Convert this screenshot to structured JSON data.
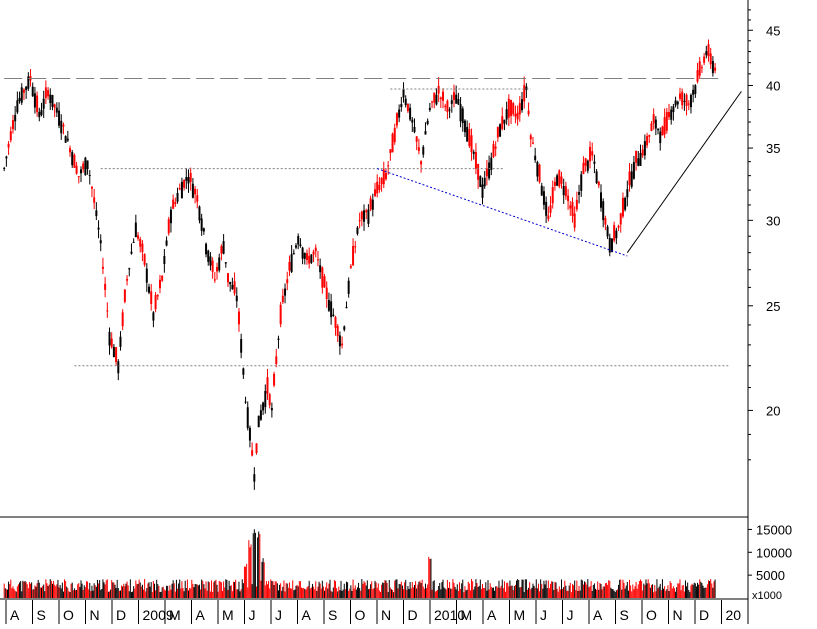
{
  "chart_data": [
    {
      "type": "candlestick",
      "title": "",
      "xlabel": "",
      "ylabel": "",
      "y_scale": "log",
      "ylim": [
        16,
        48
      ],
      "y_ticks": [
        45,
        40,
        35,
        30,
        25,
        20
      ],
      "x_labels": [
        "A",
        "S",
        "O",
        "N",
        "D",
        "2009",
        "M",
        "A",
        "M",
        "J",
        "J",
        "A",
        "S",
        "O",
        "N",
        "D",
        "2010",
        "M",
        "A",
        "M",
        "J",
        "J",
        "A",
        "S",
        "O",
        "N",
        "D",
        "20"
      ],
      "colors": {
        "up": "#000000",
        "down": "#ff0000",
        "grid": "#808080",
        "trend_blue": "#0000cc",
        "trend_black": "#000000"
      },
      "price_path": [
        {
          "t": 0,
          "p": 33.5
        },
        {
          "t": 3,
          "p": 38.5
        },
        {
          "t": 6,
          "p": 40.6
        },
        {
          "t": 8,
          "p": 37.5
        },
        {
          "t": 10,
          "p": 39.5
        },
        {
          "t": 13,
          "p": 37.0
        },
        {
          "t": 15,
          "p": 35.0
        },
        {
          "t": 17,
          "p": 33.0
        },
        {
          "t": 19,
          "p": 34.0
        },
        {
          "t": 22,
          "p": 28.5
        },
        {
          "t": 24,
          "p": 23.5
        },
        {
          "t": 26,
          "p": 22.0
        },
        {
          "t": 28,
          "p": 26.5
        },
        {
          "t": 30,
          "p": 29.5
        },
        {
          "t": 32,
          "p": 27.5
        },
        {
          "t": 34,
          "p": 24.5
        },
        {
          "t": 36,
          "p": 26.5
        },
        {
          "t": 38,
          "p": 30.5
        },
        {
          "t": 40,
          "p": 32.0
        },
        {
          "t": 42,
          "p": 33.0
        },
        {
          "t": 44,
          "p": 31.5
        },
        {
          "t": 46,
          "p": 28.5
        },
        {
          "t": 48,
          "p": 26.5
        },
        {
          "t": 50,
          "p": 28.5
        },
        {
          "t": 51,
          "p": 26.5
        },
        {
          "t": 53,
          "p": 25.5
        },
        {
          "t": 55,
          "p": 20.5
        },
        {
          "t": 57,
          "p": 17.5
        },
        {
          "t": 58,
          "p": 19.5
        },
        {
          "t": 60,
          "p": 21.0
        },
        {
          "t": 61,
          "p": 20.0
        },
        {
          "t": 63,
          "p": 24.5
        },
        {
          "t": 65,
          "p": 27.0
        },
        {
          "t": 67,
          "p": 29.0
        },
        {
          "t": 69,
          "p": 27.5
        },
        {
          "t": 71,
          "p": 28.0
        },
        {
          "t": 73,
          "p": 26.0
        },
        {
          "t": 75,
          "p": 24.5
        },
        {
          "t": 77,
          "p": 23.0
        },
        {
          "t": 79,
          "p": 27.0
        },
        {
          "t": 81,
          "p": 30.0
        },
        {
          "t": 83,
          "p": 30.5
        },
        {
          "t": 85,
          "p": 32.0
        },
        {
          "t": 87,
          "p": 33.0
        },
        {
          "t": 89,
          "p": 36.0
        },
        {
          "t": 91,
          "p": 39.5
        },
        {
          "t": 93,
          "p": 37.0
        },
        {
          "t": 95,
          "p": 34.0
        },
        {
          "t": 97,
          "p": 38.0
        },
        {
          "t": 99,
          "p": 39.5
        },
        {
          "t": 101,
          "p": 38.0
        },
        {
          "t": 103,
          "p": 39.0
        },
        {
          "t": 105,
          "p": 37.0
        },
        {
          "t": 107,
          "p": 34.5
        },
        {
          "t": 109,
          "p": 32.0
        },
        {
          "t": 111,
          "p": 34.0
        },
        {
          "t": 113,
          "p": 36.5
        },
        {
          "t": 115,
          "p": 38.0
        },
        {
          "t": 117,
          "p": 37.5
        },
        {
          "t": 119,
          "p": 39.8
        },
        {
          "t": 120,
          "p": 36.0
        },
        {
          "t": 122,
          "p": 33.0
        },
        {
          "t": 124,
          "p": 30.0
        },
        {
          "t": 126,
          "p": 33.0
        },
        {
          "t": 128,
          "p": 32.0
        },
        {
          "t": 130,
          "p": 30.0
        },
        {
          "t": 132,
          "p": 33.5
        },
        {
          "t": 134,
          "p": 34.5
        },
        {
          "t": 136,
          "p": 31.5
        },
        {
          "t": 138,
          "p": 28.5
        },
        {
          "t": 140,
          "p": 29.5
        },
        {
          "t": 142,
          "p": 32.0
        },
        {
          "t": 144,
          "p": 34.0
        },
        {
          "t": 146,
          "p": 35.0
        },
        {
          "t": 148,
          "p": 37.0
        },
        {
          "t": 150,
          "p": 36.0
        },
        {
          "t": 152,
          "p": 38.0
        },
        {
          "t": 154,
          "p": 39.0
        },
        {
          "t": 156,
          "p": 38.5
        },
        {
          "t": 158,
          "p": 40.5
        },
        {
          "t": 160,
          "p": 43.0
        },
        {
          "t": 162,
          "p": 41.5
        }
      ],
      "volume_profile": {
        "base": 3200,
        "spikes": [
          {
            "t": 57,
            "v": 16500
          },
          {
            "t": 58,
            "v": 15000
          },
          {
            "t": 56,
            "v": 13000
          },
          {
            "t": 59,
            "v": 9000
          },
          {
            "t": 97,
            "v": 10000
          },
          {
            "t": 55,
            "v": 7500
          }
        ]
      },
      "volume_ticks": [
        15000,
        10000,
        5000
      ],
      "volume_unit_label": "x1000",
      "reference_lines": [
        {
          "style": "dashed",
          "y": 40.6,
          "from_t": 0,
          "to_t": 164
        },
        {
          "style": "dotted",
          "y": 39.7,
          "from_t": 88,
          "to_t": 120
        },
        {
          "style": "dotted",
          "y": 33.5,
          "from_t": 22,
          "to_t": 114
        },
        {
          "style": "dotted",
          "y": 22.0,
          "from_t": 16,
          "to_t": 165
        }
      ],
      "trendlines": [
        {
          "color": "trend_blue",
          "from": {
            "t": 85,
            "p": 33.5
          },
          "to": {
            "t": 142,
            "p": 27.8
          }
        },
        {
          "color": "trend_black",
          "from": {
            "t": 142,
            "p": 28.0
          },
          "to": {
            "t": 168,
            "p": 39.5
          }
        }
      ]
    }
  ]
}
